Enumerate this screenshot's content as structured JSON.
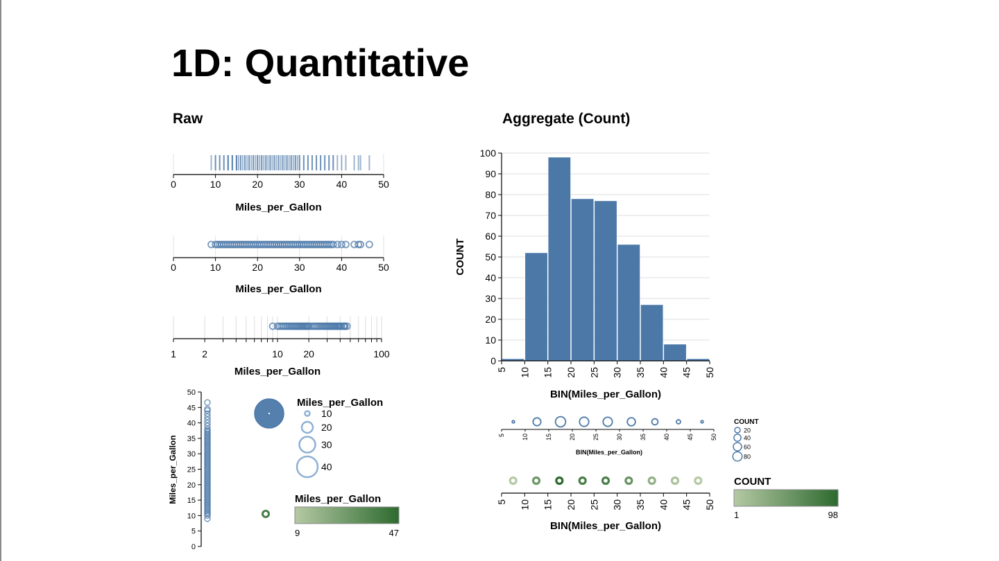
{
  "slide": {
    "title": "1D: Quantitative",
    "left_heading": "Raw",
    "right_heading": "Aggregate (Count)"
  },
  "colors": {
    "primary": "#4c78a8",
    "primary_light": "#8eb0d3",
    "green_dark": "#2d6a2f",
    "green_light": "#b5c9a4"
  },
  "field": "Miles_per_Gallon",
  "chart_data": [
    {
      "id": "tick-strip",
      "type": "strip",
      "mark": "tick",
      "xlabel": "Miles_per_Gallon",
      "xlim": [
        0,
        50
      ],
      "xticks": [
        0,
        10,
        20,
        30,
        40,
        50
      ],
      "values": [
        9,
        10,
        10,
        11,
        11,
        12,
        12,
        13,
        13,
        13,
        14,
        14,
        14,
        15,
        15,
        15,
        15.5,
        16,
        16,
        16.5,
        17,
        17,
        17.5,
        18,
        18,
        18.5,
        19,
        19,
        19.5,
        20,
        20,
        20.5,
        21,
        21,
        21.5,
        22,
        22,
        22.5,
        23,
        23,
        23.5,
        24,
        24,
        24.5,
        25,
        25,
        25.5,
        26,
        26,
        26.5,
        27,
        27,
        27.5,
        28,
        28,
        28.5,
        29,
        29,
        29.5,
        30,
        30,
        31,
        31,
        32,
        32,
        33,
        33,
        34,
        34,
        35,
        35,
        36,
        36,
        37,
        37,
        38,
        38,
        39,
        40,
        41,
        43,
        44,
        44.5,
        46.6
      ]
    },
    {
      "id": "circle-strip",
      "type": "strip",
      "mark": "circle",
      "xlabel": "Miles_per_Gallon",
      "xlim": [
        0,
        50
      ],
      "xticks": [
        0,
        10,
        20,
        30,
        40,
        50
      ],
      "values": [
        9,
        10,
        10.5,
        11,
        11.5,
        12,
        12.5,
        13,
        13.5,
        14,
        14.5,
        15,
        15.5,
        16,
        16.5,
        17,
        17.5,
        18,
        18.5,
        19,
        19.5,
        20,
        20.5,
        21,
        21.5,
        22,
        22.5,
        23,
        23.5,
        24,
        24.5,
        25,
        25.5,
        26,
        26.5,
        27,
        27.5,
        28,
        28.5,
        29,
        29.5,
        30,
        30.5,
        31,
        31.5,
        32,
        32.5,
        33,
        33.5,
        34,
        34.5,
        35,
        35.5,
        36,
        36.5,
        37,
        37.5,
        38,
        39,
        40,
        41,
        43,
        44,
        44.5,
        46.6
      ]
    },
    {
      "id": "log-strip",
      "type": "strip",
      "mark": "circle",
      "scale": "log",
      "xlabel": "Miles_per_Gallon",
      "xlim": [
        1,
        100
      ],
      "xticks": [
        1,
        2,
        10,
        20,
        100
      ],
      "values": [
        9,
        10,
        10.5,
        11,
        11.5,
        12,
        12.5,
        13,
        13.5,
        14,
        14.5,
        15,
        15.5,
        16,
        16.5,
        17,
        17.5,
        18,
        18.5,
        19,
        19.5,
        20,
        21,
        22,
        23,
        24,
        25,
        26,
        27,
        28,
        29,
        30,
        31,
        32,
        33,
        34,
        35,
        36,
        37,
        38,
        39,
        40,
        41,
        43,
        44,
        44.5,
        46.6
      ]
    },
    {
      "id": "vertical-strip",
      "type": "strip",
      "mark": "circle",
      "orient": "vertical",
      "ylabel": "Miles_per_Gallon",
      "ylim": [
        0,
        50
      ],
      "yticks": [
        0,
        5,
        10,
        15,
        20,
        25,
        30,
        35,
        40,
        45,
        50
      ],
      "values": [
        9,
        10,
        10.5,
        11,
        11.5,
        12,
        12.5,
        13,
        13.5,
        14,
        14.5,
        15,
        15.5,
        16,
        16.5,
        17,
        17.5,
        18,
        18.5,
        19,
        19.5,
        20,
        20.5,
        21,
        21.5,
        22,
        22.5,
        23,
        23.5,
        24,
        24.5,
        25,
        25.5,
        26,
        26.5,
        27,
        27.5,
        28,
        28.5,
        29,
        29.5,
        30,
        30.5,
        31,
        31.5,
        32,
        32.5,
        33,
        33.5,
        34,
        34.5,
        35,
        35.5,
        36,
        36.5,
        37,
        37.5,
        38,
        39,
        40,
        41,
        42,
        43,
        44,
        44.5,
        46.6
      ]
    },
    {
      "id": "size-legend",
      "type": "legend",
      "encoding": "size",
      "title": "Miles_per_Gallon",
      "entries": [
        10,
        20,
        30,
        40
      ]
    },
    {
      "id": "color-legend",
      "type": "legend",
      "encoding": "color",
      "title": "Miles_per_Gallon",
      "min": 9,
      "max": 47
    },
    {
      "id": "histogram",
      "type": "bar",
      "xlabel": "BIN(Miles_per_Gallon)",
      "ylabel": "COUNT",
      "xlim": [
        5,
        50
      ],
      "ylim": [
        0,
        100
      ],
      "xticks": [
        5,
        10,
        15,
        20,
        25,
        30,
        35,
        40,
        45,
        50
      ],
      "yticks": [
        0,
        10,
        20,
        30,
        40,
        50,
        60,
        70,
        80,
        90,
        100
      ],
      "bins": [
        5,
        10,
        15,
        20,
        25,
        30,
        35,
        40,
        45
      ],
      "bin_width": 5,
      "values": [
        1,
        52,
        98,
        78,
        77,
        56,
        27,
        8,
        1
      ],
      "grid": true
    },
    {
      "id": "size-binned",
      "type": "dot",
      "encoding": "size",
      "xlabel": "BIN(Miles_per_Gallon)",
      "xlim": [
        5,
        50
      ],
      "xticks": [
        5,
        10,
        15,
        20,
        25,
        30,
        35,
        40,
        45,
        50
      ],
      "x": [
        7.5,
        12.5,
        17.5,
        22.5,
        27.5,
        32.5,
        37.5,
        42.5,
        47.5
      ],
      "counts": [
        1,
        52,
        98,
        78,
        77,
        56,
        27,
        8,
        1
      ],
      "legend": {
        "title": "COUNT",
        "entries": [
          20,
          40,
          60,
          80
        ]
      }
    },
    {
      "id": "color-binned",
      "type": "dot",
      "encoding": "color",
      "xlabel": "BIN(Miles_per_Gallon)",
      "xlim": [
        5,
        50
      ],
      "xticks": [
        5,
        10,
        15,
        20,
        25,
        30,
        35,
        40,
        45,
        50
      ],
      "x": [
        7.5,
        12.5,
        17.5,
        22.5,
        27.5,
        32.5,
        37.5,
        42.5,
        47.5
      ],
      "counts": [
        1,
        52,
        98,
        78,
        77,
        56,
        27,
        8,
        1
      ],
      "legend": {
        "title": "COUNT",
        "min": 1,
        "max": 98
      }
    }
  ]
}
